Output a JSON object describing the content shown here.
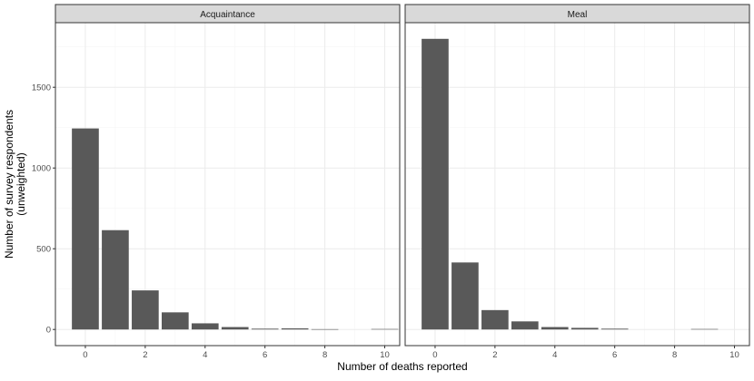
{
  "chart_data": {
    "type": "bar",
    "xlabel": "Number of deaths reported",
    "ylabel_lines": [
      "Number of survey respondents",
      "(unweighted)"
    ],
    "x_ticks": [
      0,
      2,
      4,
      6,
      8,
      10
    ],
    "y_ticks": [
      0,
      500,
      1000,
      1500
    ],
    "xlim": [
      -1,
      10.5
    ],
    "ylim": [
      -100,
      1900
    ],
    "grid": true,
    "panels": [
      {
        "strip_label": "Acquaintance",
        "x": [
          0,
          1,
          2,
          3,
          4,
          5,
          6,
          7,
          8,
          10
        ],
        "values": [
          1245,
          615,
          242,
          106,
          38,
          15,
          5,
          7,
          2,
          3
        ]
      },
      {
        "strip_label": "Meal",
        "x": [
          0,
          1,
          2,
          3,
          4,
          5,
          6,
          9
        ],
        "values": [
          1800,
          415,
          120,
          50,
          15,
          10,
          5,
          3
        ]
      }
    ],
    "colors": {
      "bar": "#595959",
      "panel_border": "#333333",
      "strip_fill": "#d9d9d9",
      "grid_major": "#ebebeb",
      "grid_minor": "#f5f5f5",
      "text": "#4d4d4d"
    }
  }
}
